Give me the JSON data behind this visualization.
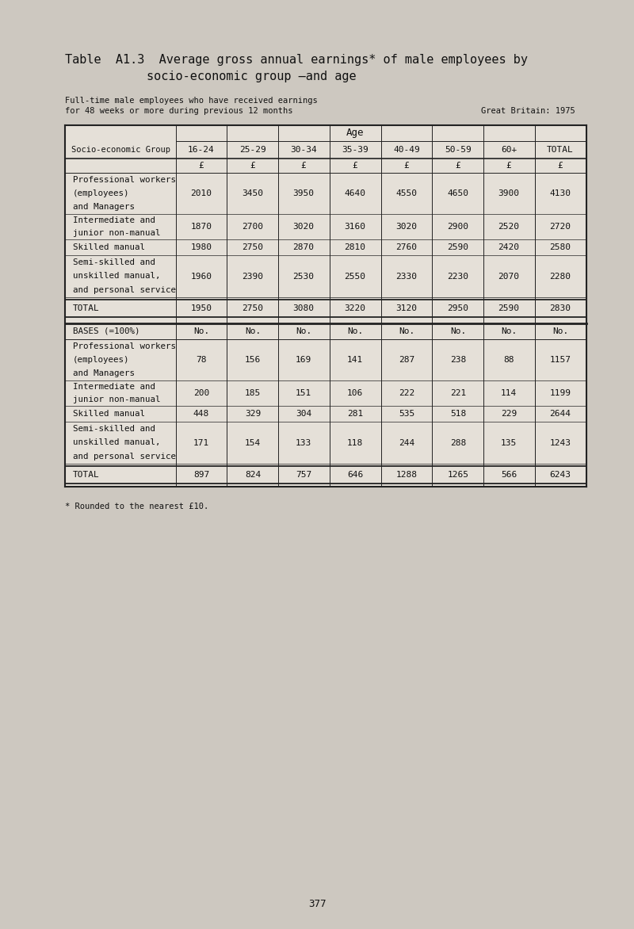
{
  "title_line1": "Table  A1.3  Average gross annual earnings* of male employees by",
  "title_line2": "socio-economic group –and age",
  "subtitle1": "Full-time male employees who have received earnings",
  "subtitle2": "for 48 weeks or more during previous 12 months",
  "subtitle_right": "Great Britain: 1975",
  "age_header": "Age",
  "col_headers": [
    "16-24",
    "25-29",
    "30-34",
    "35-39",
    "40-49",
    "50-59",
    "60+",
    "TOTAL"
  ],
  "currency_symbol": "£",
  "earnings_rows": [
    {
      "label_lines": [
        "Professional workers",
        "(employees)",
        "and Managers"
      ],
      "values": [
        "2010",
        "3450",
        "3950",
        "4640",
        "4550",
        "4650",
        "3900",
        "4130"
      ]
    },
    {
      "label_lines": [
        "Intermediate and",
        "junior non-manual"
      ],
      "values": [
        "1870",
        "2700",
        "3020",
        "3160",
        "3020",
        "2900",
        "2520",
        "2720"
      ]
    },
    {
      "label_lines": [
        "Skilled manual"
      ],
      "values": [
        "1980",
        "2750",
        "2870",
        "2810",
        "2760",
        "2590",
        "2420",
        "2580"
      ]
    },
    {
      "label_lines": [
        "Semi-skilled and",
        "unskilled manual,",
        "and personal service"
      ],
      "values": [
        "1960",
        "2390",
        "2530",
        "2550",
        "2330",
        "2230",
        "2070",
        "2280"
      ]
    }
  ],
  "total_label": "TOTAL",
  "total_values": [
    "1950",
    "2750",
    "3080",
    "3220",
    "3120",
    "2950",
    "2590",
    "2830"
  ],
  "bases_header": "BASES (=100%)",
  "bases_no": "No.",
  "bases_rows": [
    {
      "label_lines": [
        "Professional workers",
        "(employees)",
        "and Managers"
      ],
      "values": [
        "78",
        "156",
        "169",
        "141",
        "287",
        "238",
        "88",
        "1157"
      ]
    },
    {
      "label_lines": [
        "Intermediate and",
        "junior non-manual"
      ],
      "values": [
        "200",
        "185",
        "151",
        "106",
        "222",
        "221",
        "114",
        "1199"
      ]
    },
    {
      "label_lines": [
        "Skilled manual"
      ],
      "values": [
        "448",
        "329",
        "304",
        "281",
        "535",
        "518",
        "229",
        "2644"
      ]
    },
    {
      "label_lines": [
        "Semi-skilled and",
        "unskilled manual,",
        "and personal service"
      ],
      "values": [
        "171",
        "154",
        "133",
        "118",
        "244",
        "288",
        "135",
        "1243"
      ]
    }
  ],
  "bases_total_label": "TOTAL",
  "bases_total_values": [
    "897",
    "824",
    "757",
    "646",
    "1288",
    "1265",
    "566",
    "6243"
  ],
  "footnote": "* Rounded to the nearest £10.",
  "page_number": "377",
  "bg_color": "#cdc8c0",
  "table_bg": "#e5e0d8",
  "line_color": "#222222",
  "text_color": "#111111"
}
